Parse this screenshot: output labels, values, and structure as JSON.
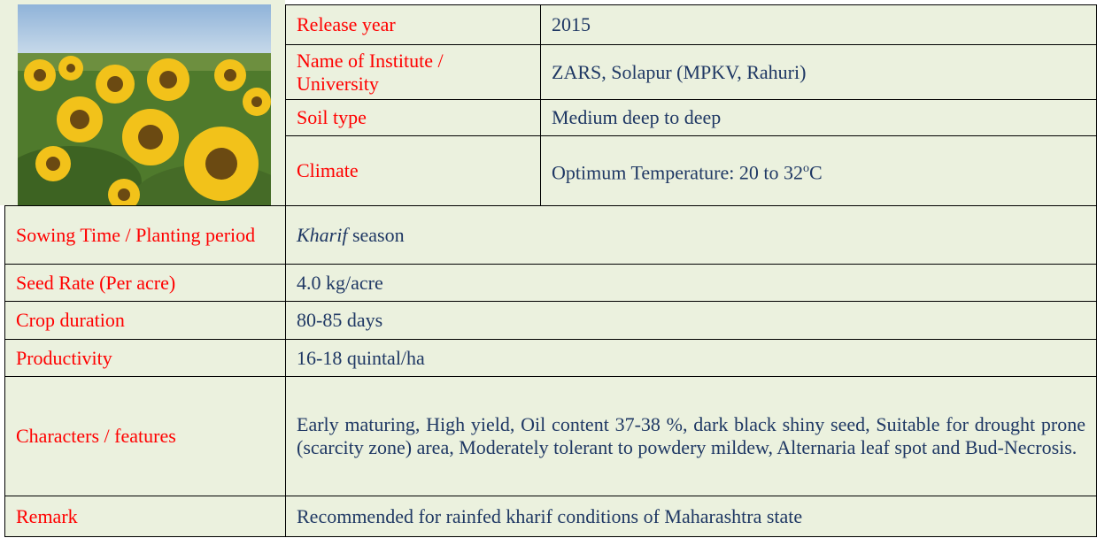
{
  "top_table": {
    "rows": [
      [
        "Release year",
        "2015"
      ],
      [
        "Name of Institute / University",
        "ZARS, Solapur (MPKV, Rahuri)"
      ],
      [
        "Soil type",
        "Medium deep to deep"
      ],
      [
        "Climate",
        {
          "text": "Optimum Temperature: 20 to 32",
          "sup": "o",
          "suffix": "C"
        }
      ]
    ]
  },
  "bottom_table": {
    "rows": [
      [
        "Sowing Time /  Planting  period",
        {
          "italic": "Kharif",
          "rest": " season"
        }
      ],
      [
        "Seed Rate (Per acre)",
        "4.0 kg/acre"
      ],
      [
        "Crop duration",
        "80-85 days"
      ],
      [
        "Productivity",
        "16-18 quintal/ha"
      ],
      [
        "Characters / features",
        "Early maturing, High yield, Oil content 37-38 %, dark black shiny seed, Suitable for drought prone (scarcity zone) area, Moderately tolerant to powdery mildew, Alternaria leaf spot and Bud-Necrosis."
      ],
      [
        "Remark",
        "Recommended for rainfed kharif conditions of Maharashtra state"
      ]
    ]
  }
}
